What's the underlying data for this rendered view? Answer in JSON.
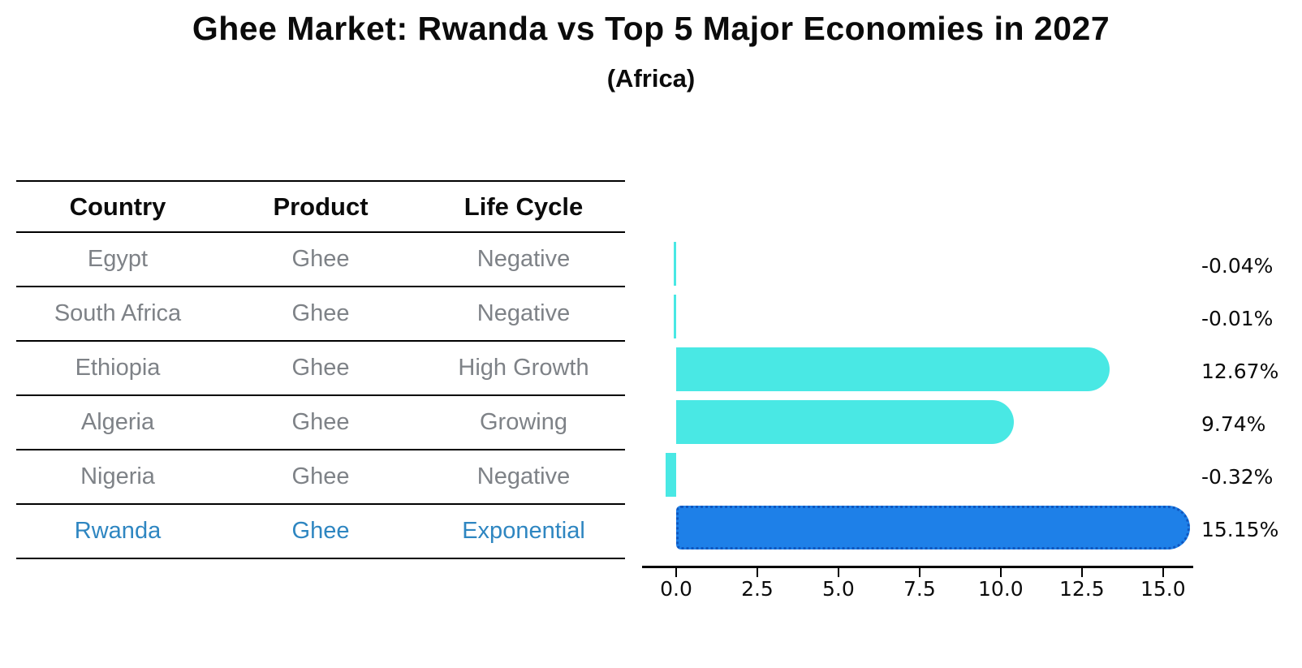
{
  "title": "Ghee Market: Rwanda vs Top 5 Major Economies in 2027",
  "subtitle": "(Africa)",
  "table": {
    "headers": [
      "Country",
      "Product",
      "Life Cycle"
    ],
    "rows": [
      {
        "country": "Egypt",
        "product": "Ghee",
        "life_cycle": "Negative",
        "highlight": false
      },
      {
        "country": "South Africa",
        "product": "Ghee",
        "life_cycle": "Negative",
        "highlight": false
      },
      {
        "country": "Ethiopia",
        "product": "Ghee",
        "life_cycle": "High Growth",
        "highlight": false
      },
      {
        "country": "Algeria",
        "product": "Ghee",
        "life_cycle": "Growing",
        "highlight": false
      },
      {
        "country": "Nigeria",
        "product": "Ghee",
        "life_cycle": "Negative",
        "highlight": false
      },
      {
        "country": "Rwanda",
        "product": "Ghee",
        "life_cycle": "Exponential",
        "highlight": true
      }
    ]
  },
  "chart_data": {
    "type": "bar",
    "orientation": "horizontal",
    "title": "Ghee Market: Rwanda vs Top 5 Major Economies in 2027",
    "subtitle": "(Africa)",
    "categories": [
      "Egypt",
      "South Africa",
      "Ethiopia",
      "Algeria",
      "Nigeria",
      "Rwanda"
    ],
    "values": [
      -0.04,
      -0.01,
      12.67,
      9.74,
      -0.32,
      15.15
    ],
    "value_labels": [
      "-0.04%",
      "-0.01%",
      "12.67%",
      "9.74%",
      "-0.32%",
      "15.15%"
    ],
    "highlight_index": 5,
    "xlabel": "",
    "ylabel": "",
    "x_ticks": [
      {
        "value": 0,
        "label": "0.0"
      },
      {
        "value": 2.5,
        "label": "2.5"
      },
      {
        "value": 5,
        "label": "5.0"
      },
      {
        "value": 7.5,
        "label": "7.5"
      },
      {
        "value": 10,
        "label": "10.0"
      },
      {
        "value": 12.5,
        "label": "12.5"
      },
      {
        "value": 15,
        "label": "15.0"
      }
    ],
    "xlim": [
      -1.05,
      15.93
    ],
    "grid": false,
    "legend": null,
    "bar_color": "#49E8E4",
    "highlight_bar_color": "#1E80E8",
    "highlight_bar_border": "#1057C0"
  },
  "colors": {
    "title_text": "#0b0b0b",
    "table_header_text": "#0b0b0b",
    "table_body_text": "#7E8287",
    "highlight_text": "#2E86C1",
    "axis": "#000000"
  }
}
